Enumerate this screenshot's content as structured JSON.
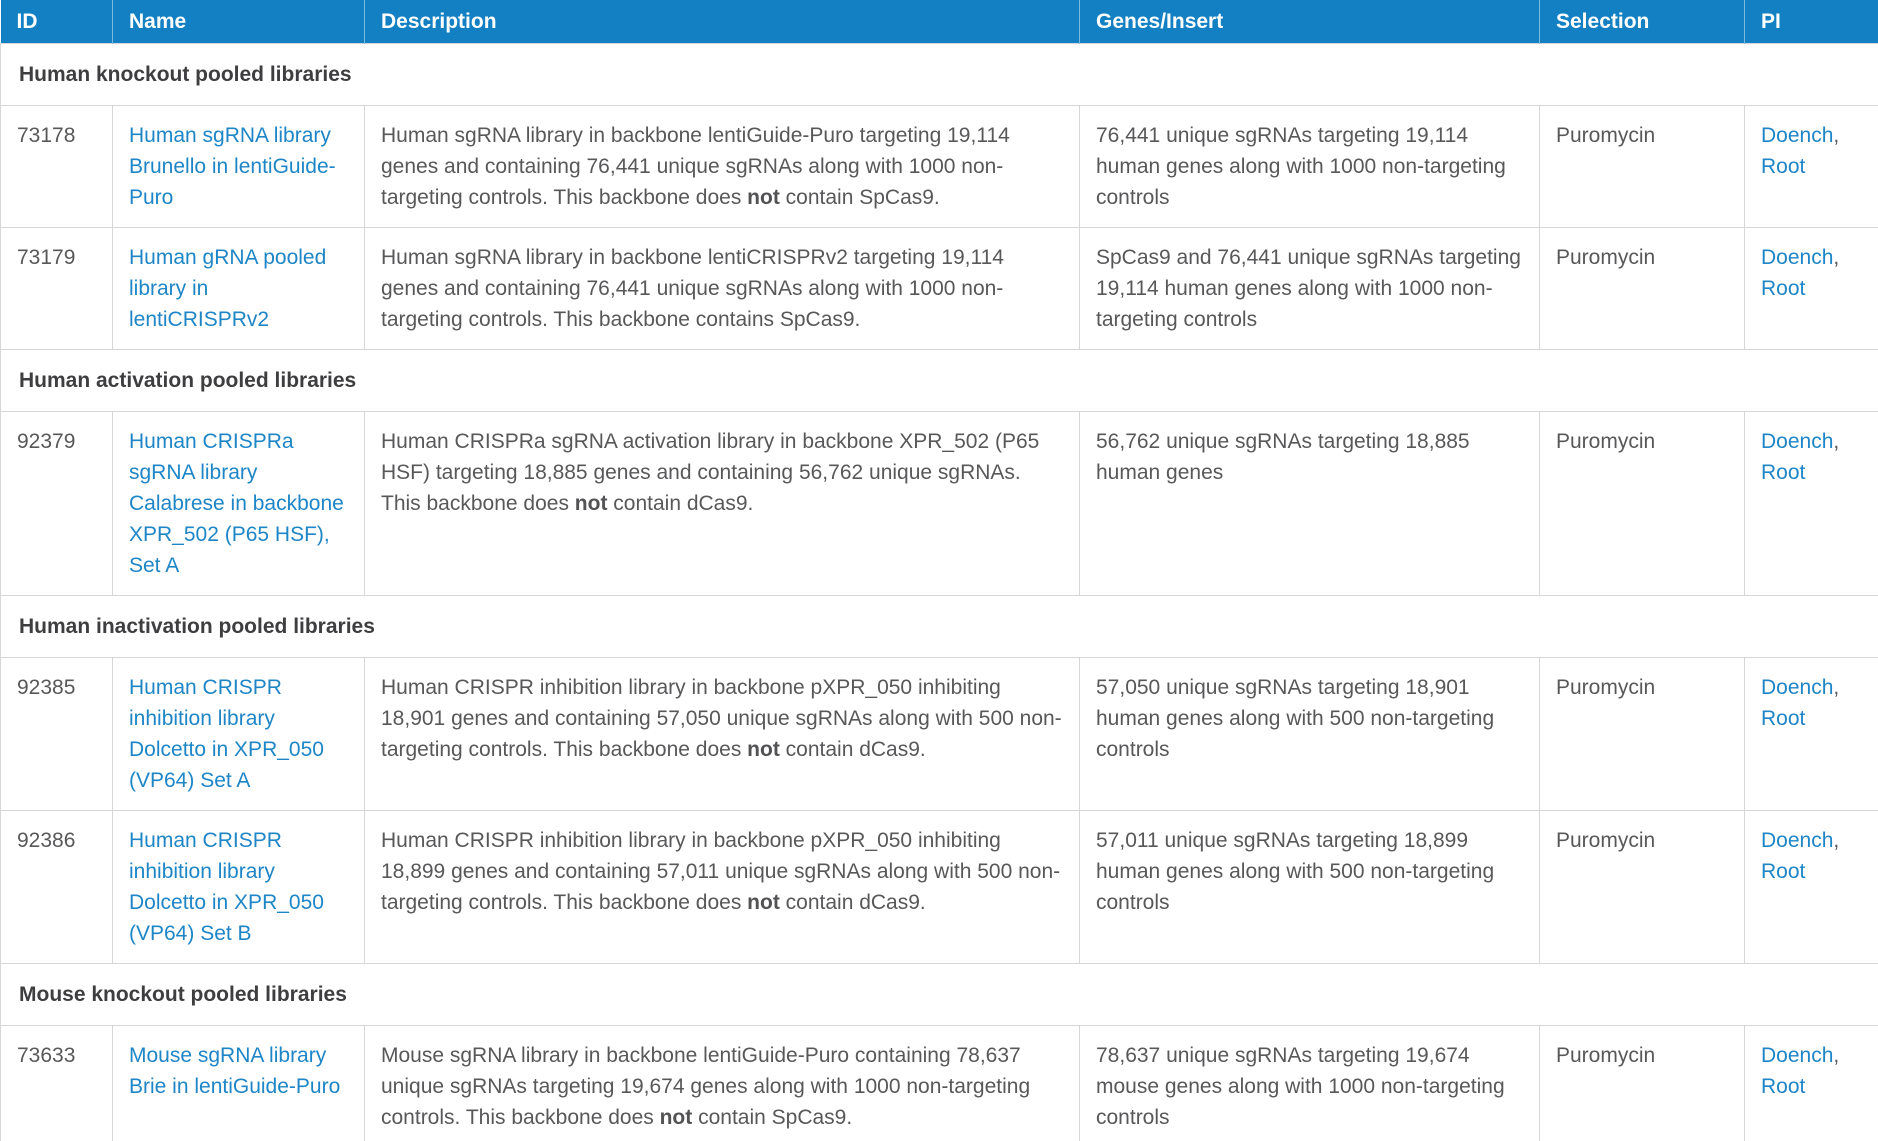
{
  "colors": {
    "header_bg": "#1280c2",
    "header_text": "#ffffff",
    "link_blue": "#1e86c7",
    "body_text": "#58585a",
    "section_text": "#3e3e40",
    "border": "#d7d7d7"
  },
  "table": {
    "columns": [
      {
        "label": "ID"
      },
      {
        "label": "Name"
      },
      {
        "label": "Description"
      },
      {
        "label": "Genes/Insert"
      },
      {
        "label": "Selection"
      },
      {
        "label": "PI"
      }
    ],
    "pi_separator": ", ",
    "sections": [
      {
        "title": "Human knockout pooled libraries",
        "rows": [
          {
            "id": "73178",
            "name": "Human sgRNA library Brunello in lentiGuide-Puro",
            "description": [
              {
                "text": "Human sgRNA library in backbone lentiGuide-Puro targeting 19,114 genes and containing 76,441 unique sgRNAs along with 1000 non-targeting controls. This backbone does ",
                "bold": false
              },
              {
                "text": "not",
                "bold": true
              },
              {
                "text": " contain SpCas9.",
                "bold": false
              }
            ],
            "genes_insert": "76,441 unique sgRNAs targeting 19,114 human genes along with 1000 non-targeting controls",
            "selection": "Puromycin",
            "pi": [
              "Doench",
              "Root"
            ]
          },
          {
            "id": "73179",
            "name": "Human gRNA pooled library in lentiCRISPRv2",
            "description": [
              {
                "text": "Human sgRNA library in backbone lentiCRISPRv2 targeting 19,114 genes and containing 76,441 unique sgRNAs along with 1000 non-targeting controls. This backbone contains SpCas9.",
                "bold": false
              }
            ],
            "genes_insert": "SpCas9 and 76,441 unique sgRNAs targeting 19,114 human genes along with 1000 non-targeting controls",
            "selection": "Puromycin",
            "pi": [
              "Doench",
              "Root"
            ]
          }
        ]
      },
      {
        "title": "Human activation pooled libraries",
        "rows": [
          {
            "id": "92379",
            "name": "Human CRISPRa sgRNA library Calabrese in backbone XPR_502 (P65 HSF), Set A",
            "description": [
              {
                "text": "Human CRISPRa sgRNA activation library in backbone XPR_502 (P65 HSF) targeting 18,885 genes and containing 56,762 unique sgRNAs. This backbone does ",
                "bold": false
              },
              {
                "text": "not",
                "bold": true
              },
              {
                "text": " contain dCas9.",
                "bold": false
              }
            ],
            "genes_insert": "56,762 unique sgRNAs targeting 18,885 human genes",
            "selection": "Puromycin",
            "pi": [
              "Doench",
              "Root"
            ]
          }
        ]
      },
      {
        "title": "Human inactivation pooled libraries",
        "rows": [
          {
            "id": "92385",
            "name": "Human CRISPR inhibition library Dolcetto in XPR_050 (VP64) Set A",
            "description": [
              {
                "text": "Human CRISPR inhibition library in backbone pXPR_050 inhibiting 18,901 genes and containing 57,050 unique sgRNAs along with 500 non-targeting controls. This backbone does ",
                "bold": false
              },
              {
                "text": "not",
                "bold": true
              },
              {
                "text": " contain dCas9.",
                "bold": false
              }
            ],
            "genes_insert": "57,050 unique sgRNAs targeting 18,901 human genes along with 500 non-targeting controls",
            "selection": "Puromycin",
            "pi": [
              "Doench",
              "Root"
            ]
          },
          {
            "id": "92386",
            "name": "Human CRISPR inhibition library Dolcetto in XPR_050 (VP64) Set B",
            "description": [
              {
                "text": "Human CRISPR inhibition library in backbone pXPR_050 inhibiting 18,899 genes and containing 57,011 unique sgRNAs along with 500 non-targeting controls. This backbone does ",
                "bold": false
              },
              {
                "text": "not",
                "bold": true
              },
              {
                "text": " contain dCas9.",
                "bold": false
              }
            ],
            "genes_insert": "57,011 unique sgRNAs targeting 18,899 human genes along with 500 non-targeting controls",
            "selection": "Puromycin",
            "pi": [
              "Doench",
              "Root"
            ]
          }
        ]
      },
      {
        "title": "Mouse knockout pooled libraries",
        "rows": [
          {
            "id": "73633",
            "name": "Mouse sgRNA library Brie in lentiGuide-Puro",
            "description": [
              {
                "text": "Mouse sgRNA library in backbone lentiGuide-Puro containing 78,637 unique sgRNAs targeting 19,674 genes along with 1000 non-targeting controls. This backbone does ",
                "bold": false
              },
              {
                "text": "not",
                "bold": true
              },
              {
                "text": " contain SpCas9.",
                "bold": false
              }
            ],
            "genes_insert": "78,637 unique sgRNAs targeting 19,674 mouse genes along with 1000 non-targeting controls",
            "selection": "Puromycin",
            "pi": [
              "Doench",
              "Root"
            ]
          }
        ]
      }
    ]
  }
}
